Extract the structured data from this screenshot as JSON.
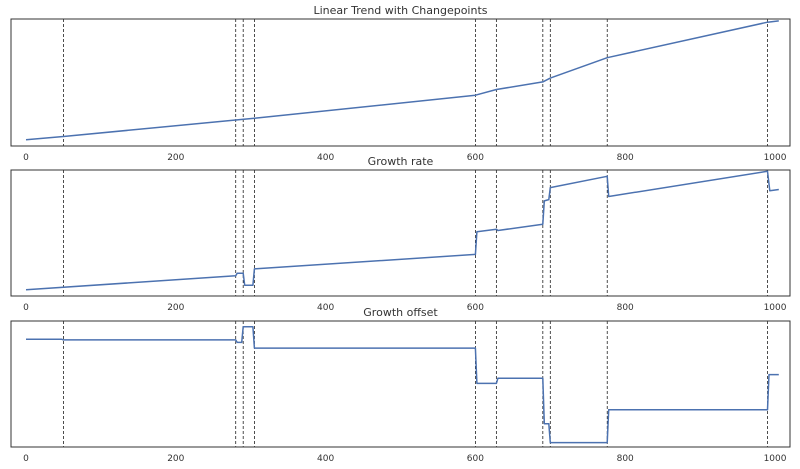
{
  "figure": {
    "background": "#ffffff"
  },
  "chart_data": [
    {
      "type": "line",
      "title": "Linear Trend with Changepoints",
      "xlabel": "",
      "ylabel": "",
      "xlim": [
        -20,
        1020
      ],
      "ylim": [
        0,
        10
      ],
      "xticks": [
        0,
        200,
        400,
        600,
        800,
        1000
      ],
      "changepoints": [
        50,
        280,
        290,
        305,
        600,
        628,
        690,
        700,
        776,
        990
      ],
      "series": [
        {
          "name": "trend",
          "color": "#4c72b0",
          "x": [
            0,
            50,
            280,
            305,
            600,
            628,
            690,
            700,
            776,
            990,
            1005
          ],
          "y": [
            0.5,
            0.75,
            2.05,
            2.18,
            4.0,
            4.45,
            5.05,
            5.35,
            6.95,
            9.75,
            9.85
          ]
        }
      ]
    },
    {
      "type": "line",
      "title": "Growth rate",
      "xlabel": "",
      "ylabel": "",
      "xlim": [
        -20,
        1020
      ],
      "ylim": [
        0,
        10
      ],
      "xticks": [
        0,
        200,
        400,
        600,
        800,
        1000
      ],
      "changepoints": [
        50,
        280,
        290,
        305,
        600,
        628,
        690,
        700,
        776,
        990
      ],
      "series": [
        {
          "name": "growth rate",
          "color": "#4c72b0",
          "x": [
            0,
            280,
            282,
            290,
            292,
            303,
            305,
            600,
            602,
            628,
            630,
            690,
            692,
            698,
            700,
            776,
            778,
            990,
            993,
            1005
          ],
          "y": [
            0.5,
            1.6,
            1.8,
            1.8,
            0.85,
            0.85,
            2.15,
            3.3,
            5.1,
            5.3,
            5.2,
            5.7,
            7.55,
            7.65,
            8.6,
            9.5,
            7.9,
            9.9,
            8.35,
            8.45
          ]
        }
      ]
    },
    {
      "type": "line",
      "title": "Growth offset",
      "xlabel": "",
      "ylabel": "",
      "xlim": [
        -20,
        1020
      ],
      "ylim": [
        0,
        10
      ],
      "xticks": [
        0,
        200,
        400,
        600,
        800,
        1000
      ],
      "changepoints": [
        50,
        280,
        290,
        305,
        600,
        628,
        690,
        700,
        776,
        990
      ],
      "series": [
        {
          "name": "growth offset",
          "color": "#4c72b0",
          "x": [
            0,
            48,
            50,
            280,
            282,
            288,
            290,
            303,
            305,
            600,
            602,
            628,
            630,
            690,
            692,
            698,
            700,
            776,
            778,
            990,
            992,
            1005
          ],
          "y": [
            8.55,
            8.55,
            8.5,
            8.5,
            8.3,
            8.3,
            9.55,
            9.55,
            7.85,
            7.85,
            5.05,
            5.05,
            5.45,
            5.45,
            1.85,
            1.85,
            0.35,
            0.35,
            2.95,
            2.95,
            5.75,
            5.75
          ]
        }
      ]
    }
  ]
}
